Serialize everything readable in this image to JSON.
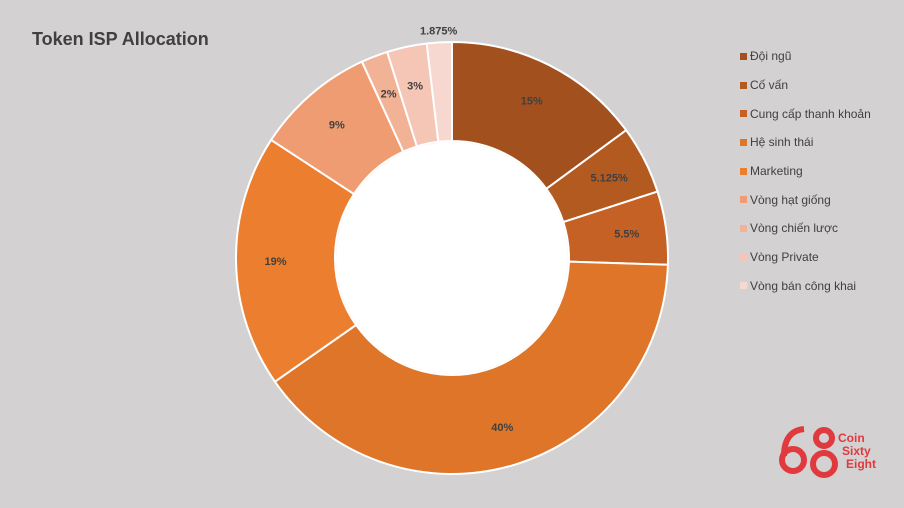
{
  "chart_data": {
    "type": "pie",
    "donut": true,
    "title": "Token ISP Allocation",
    "series": [
      {
        "name": "Đội ngũ",
        "value": 15,
        "label": "15%",
        "color": "#a2511e"
      },
      {
        "name": "Cố vấn",
        "value": 5.125,
        "label": "5.125%",
        "color": "#b35a20"
      },
      {
        "name": "Cung cấp thanh khoản",
        "value": 5.5,
        "label": "5.5%",
        "color": "#c56124"
      },
      {
        "name": "Hệ sinh thái",
        "value": 40,
        "label": "40%",
        "color": "#df7529"
      },
      {
        "name": "Marketing",
        "value": 19,
        "label": "19%",
        "color": "#ec7e30"
      },
      {
        "name": "Vòng hạt giống",
        "value": 9,
        "label": "9%",
        "color": "#f09c72"
      },
      {
        "name": "Vòng chiến lược",
        "value": 2,
        "label": "2%",
        "color": "#f2b296"
      },
      {
        "name": "Vòng Private",
        "value": 3,
        "label": "3%",
        "color": "#f5c5b6"
      },
      {
        "name": "Vòng bán công khai",
        "value": 1.875,
        "label": "1.875%",
        "color": "#f7d8d0"
      }
    ],
    "legend_position": "right",
    "background": "#d3d1d2"
  },
  "logo": {
    "mark": "68",
    "text_lines": [
      "Coin",
      "Sixty",
      "Eight"
    ],
    "color": "#e03a3e"
  }
}
